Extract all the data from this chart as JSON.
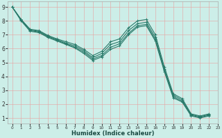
{
  "title": "",
  "xlabel": "Humidex (Indice chaleur)",
  "bg_color": "#cceee8",
  "grid_color": "#e8a0a0",
  "line_color": "#2a7a6a",
  "xlim": [
    -0.5,
    23
  ],
  "ylim": [
    0.6,
    9.4
  ],
  "xticks": [
    0,
    1,
    2,
    3,
    4,
    5,
    6,
    7,
    8,
    9,
    10,
    11,
    12,
    13,
    14,
    15,
    16,
    17,
    18,
    19,
    20,
    21,
    22,
    23
  ],
  "yticks": [
    1,
    2,
    3,
    4,
    5,
    6,
    7,
    8,
    9
  ],
  "lines": [
    [
      9.0,
      8.1,
      7.4,
      7.3,
      6.95,
      6.7,
      6.5,
      6.3,
      5.95,
      5.5,
      5.8,
      6.5,
      6.7,
      7.5,
      8.0,
      8.1,
      7.0,
      4.7,
      2.75,
      2.4,
      1.3,
      1.15,
      1.3
    ],
    [
      9.0,
      8.1,
      7.35,
      7.25,
      6.9,
      6.65,
      6.4,
      6.2,
      5.85,
      5.35,
      5.65,
      6.3,
      6.5,
      7.3,
      7.8,
      7.9,
      6.8,
      4.55,
      2.65,
      2.3,
      1.25,
      1.1,
      1.25
    ],
    [
      9.0,
      8.05,
      7.3,
      7.2,
      6.85,
      6.6,
      6.35,
      6.1,
      5.75,
      5.25,
      5.5,
      6.1,
      6.35,
      7.1,
      7.65,
      7.75,
      6.65,
      4.45,
      2.55,
      2.2,
      1.2,
      1.05,
      1.2
    ],
    [
      9.0,
      8.0,
      7.25,
      7.15,
      6.8,
      6.55,
      6.3,
      6.05,
      5.65,
      5.15,
      5.4,
      5.95,
      6.2,
      7.0,
      7.55,
      7.65,
      6.55,
      4.35,
      2.45,
      2.15,
      1.15,
      1.0,
      1.15
    ]
  ]
}
